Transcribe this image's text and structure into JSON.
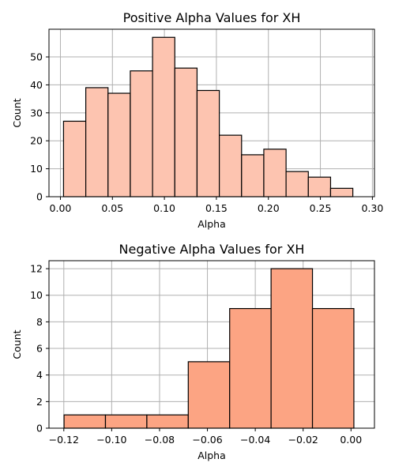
{
  "chart_data": [
    {
      "type": "histogram",
      "title": "Positive Alpha Values for XH",
      "xlabel": "Alpha",
      "ylabel": "Count",
      "xlim": [
        -0.011,
        0.302
      ],
      "ylim": [
        0,
        59.9
      ],
      "xticks": [
        0.0,
        0.05,
        0.1,
        0.15,
        0.2,
        0.25,
        0.3
      ],
      "xtick_labels": [
        "0.00",
        "0.05",
        "0.10",
        "0.15",
        "0.20",
        "0.25",
        "0.30"
      ],
      "yticks": [
        0,
        10,
        20,
        30,
        40,
        50
      ],
      "ytick_labels": [
        "0",
        "10",
        "20",
        "30",
        "40",
        "50"
      ],
      "grid": true,
      "color": "#fdc4b0",
      "bins": [
        {
          "start": 0.003,
          "end": 0.0244,
          "count": 27
        },
        {
          "start": 0.0244,
          "end": 0.0458,
          "count": 39
        },
        {
          "start": 0.0458,
          "end": 0.0672,
          "count": 37
        },
        {
          "start": 0.0672,
          "end": 0.0886,
          "count": 45
        },
        {
          "start": 0.0886,
          "end": 0.11,
          "count": 57
        },
        {
          "start": 0.11,
          "end": 0.1314,
          "count": 46
        },
        {
          "start": 0.1314,
          "end": 0.1528,
          "count": 38
        },
        {
          "start": 0.1528,
          "end": 0.1742,
          "count": 22
        },
        {
          "start": 0.1742,
          "end": 0.1956,
          "count": 15
        },
        {
          "start": 0.1956,
          "end": 0.217,
          "count": 17
        },
        {
          "start": 0.217,
          "end": 0.2384,
          "count": 9
        },
        {
          "start": 0.2384,
          "end": 0.2598,
          "count": 7
        },
        {
          "start": 0.2598,
          "end": 0.2812,
          "count": 3
        }
      ]
    },
    {
      "type": "histogram",
      "title": "Negative Alpha Values for XH",
      "xlabel": "Alpha",
      "ylabel": "Count",
      "xlim": [
        -0.1262,
        0.0098
      ],
      "ylim": [
        0,
        12.6
      ],
      "xticks": [
        -0.12,
        -0.1,
        -0.08,
        -0.06,
        -0.04,
        -0.02,
        0.0
      ],
      "xtick_labels": [
        "−0.12",
        "−0.10",
        "−0.08",
        "−0.06",
        "−0.04",
        "−0.02",
        "0.00"
      ],
      "yticks": [
        0,
        2,
        4,
        6,
        8,
        10,
        12
      ],
      "ytick_labels": [
        "0",
        "2",
        "4",
        "6",
        "8",
        "10",
        "12"
      ],
      "grid": true,
      "color": "#fca483",
      "bins": [
        {
          "start": -0.1199,
          "end": -0.1026,
          "count": 1
        },
        {
          "start": -0.1026,
          "end": -0.0853,
          "count": 1
        },
        {
          "start": -0.0853,
          "end": -0.068,
          "count": 1
        },
        {
          "start": -0.068,
          "end": -0.0507,
          "count": 5
        },
        {
          "start": -0.0507,
          "end": -0.0334,
          "count": 9
        },
        {
          "start": -0.0334,
          "end": -0.0161,
          "count": 12
        },
        {
          "start": -0.0161,
          "end": 0.0012,
          "count": 9
        }
      ]
    }
  ]
}
